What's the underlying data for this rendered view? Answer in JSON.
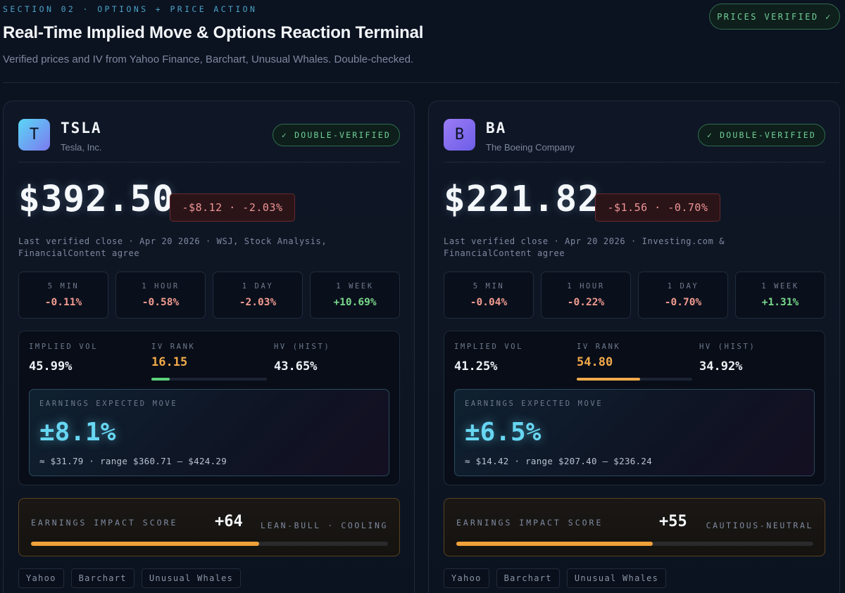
{
  "header": {
    "section_label": "SECTION 02 · OPTIONS + PRICE ACTION",
    "title": "Real-Time Implied Move & Options Reaction Terminal",
    "subtitle": "Verified prices and IV from Yahoo Finance, Barchart, Unusual Whales. Double-checked.",
    "verified_badge": "PRICES VERIFIED ✓"
  },
  "colors": {
    "positive": "#79d98c",
    "negative": "#f29b91",
    "accent_cyan": "#67d6f2",
    "accent_orange": "#f2a94a"
  },
  "cards": [
    {
      "logo_letter": "T",
      "ticker": "TSLA",
      "company": "Tesla, Inc.",
      "badge": "✓ DOUBLE-VERIFIED",
      "price": "$392.50",
      "change": "-$8.12 · -2.03%",
      "close_note": "Last verified close · Apr 20 2026 · WSJ, Stock Analysis, FinancialContent agree",
      "timeframes": [
        {
          "label": "5 MIN",
          "value": "-0.11%",
          "direction": "neg"
        },
        {
          "label": "1 HOUR",
          "value": "-0.58%",
          "direction": "neg"
        },
        {
          "label": "1 DAY",
          "value": "-2.03%",
          "direction": "neg"
        },
        {
          "label": "1 WEEK",
          "value": "+10.69%",
          "direction": "pos"
        }
      ],
      "vol": {
        "implied_vol_label": "IMPLIED VOL",
        "implied_vol": "45.99%",
        "iv_rank_label": "IV RANK",
        "iv_rank": "16.15",
        "iv_rank_fraction": 0.1615,
        "hv_label": "HV (HIST)",
        "hv": "43.65%"
      },
      "expected_move": {
        "label": "EARNINGS EXPECTED MOVE",
        "value": "±8.1%",
        "range": "≈ $31.79 · range $360.71 – $424.29"
      },
      "impact": {
        "label": "EARNINGS IMPACT SCORE",
        "score": "+64",
        "tag": "LEAN-BULL · COOLING",
        "fraction": 0.64
      },
      "sources": [
        "Yahoo",
        "Barchart",
        "Unusual Whales"
      ]
    },
    {
      "logo_letter": "B",
      "ticker": "BA",
      "company": "The Boeing Company",
      "badge": "✓ DOUBLE-VERIFIED",
      "price": "$221.82",
      "change": "-$1.56 · -0.70%",
      "close_note": "Last verified close · Apr 20 2026 · Investing.com & FinancialContent agree",
      "timeframes": [
        {
          "label": "5 MIN",
          "value": "-0.04%",
          "direction": "neg"
        },
        {
          "label": "1 HOUR",
          "value": "-0.22%",
          "direction": "neg"
        },
        {
          "label": "1 DAY",
          "value": "-0.70%",
          "direction": "neg"
        },
        {
          "label": "1 WEEK",
          "value": "+1.31%",
          "direction": "pos"
        }
      ],
      "vol": {
        "implied_vol_label": "IMPLIED VOL",
        "implied_vol": "41.25%",
        "iv_rank_label": "IV RANK",
        "iv_rank": "54.80",
        "iv_rank_fraction": 0.548,
        "hv_label": "HV (HIST)",
        "hv": "34.92%"
      },
      "expected_move": {
        "label": "EARNINGS EXPECTED MOVE",
        "value": "±6.5%",
        "range": "≈ $14.42 · range $207.40 – $236.24"
      },
      "impact": {
        "label": "EARNINGS IMPACT SCORE",
        "score": "+55",
        "tag": "CAUTIOUS-NEUTRAL",
        "fraction": 0.55
      },
      "sources": [
        "Yahoo",
        "Barchart",
        "Unusual Whales"
      ]
    }
  ]
}
